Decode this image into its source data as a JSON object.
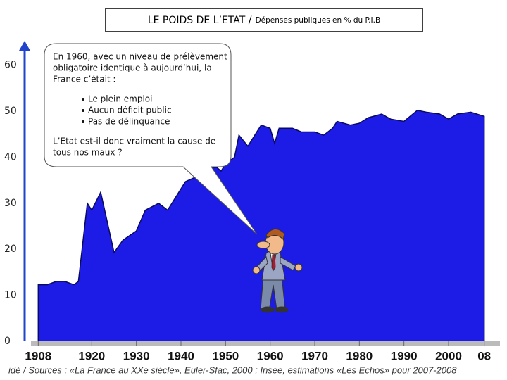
{
  "chart_data": {
    "type": "area",
    "title": "LE POIDS DE L’ETAT /",
    "subtitle": "Dépenses publiques en % du P.I.B",
    "source": "idé / Sources : «La France au XXe siècle», Euler-Sfac, 2000 : Insee, estimations «Les Echos» pour 2007-2008",
    "annotation": {
      "lines": [
        "En 1960, avec un niveau de prélèvement",
        "obligatoire identique à aujourd’hui, la",
        "France c’était :"
      ],
      "bullets": [
        "Le plein emploi",
        "Aucun déficit public",
        "Pas de délinquance"
      ],
      "question": [
        "L’Etat est-il donc vraiment la cause de",
        "tous nos maux ?"
      ]
    },
    "x": [
      1908,
      1910,
      1912,
      1914,
      1916,
      1917,
      1919,
      1920,
      1922,
      1925,
      1927,
      1930,
      1932,
      1935,
      1937,
      1939,
      1941,
      1944,
      1946,
      1948,
      1949,
      1950,
      1952,
      1953,
      1955,
      1957,
      1958,
      1960,
      1961,
      1962,
      1965,
      1967,
      1970,
      1972,
      1974,
      1975,
      1978,
      1980,
      1982,
      1985,
      1987,
      1990,
      1993,
      1995,
      1998,
      2000,
      2002,
      2005,
      2008
    ],
    "values": [
      12.3,
      12.3,
      13,
      13,
      12.3,
      13,
      30,
      28.5,
      32.4,
      19.3,
      22,
      24,
      28.5,
      30,
      28.5,
      31.6,
      34.7,
      36,
      37.8,
      37.8,
      37,
      38.6,
      40,
      44.8,
      42.4,
      45.5,
      47,
      46.3,
      43,
      46.3,
      46.3,
      45.5,
      45.5,
      44.8,
      46.3,
      47.8,
      47,
      47.4,
      48.6,
      49.4,
      48.3,
      47.8,
      50.2,
      49.8,
      49.4,
      48.3,
      49.4,
      49.8,
      48.9
    ],
    "color": "#1c1ce6",
    "xlim": [
      1907,
      2009
    ],
    "xticks": [
      1908,
      1920,
      1930,
      1940,
      1950,
      1960,
      1970,
      1980,
      1990,
      2000,
      {
        "value": 2008,
        "label": "08"
      }
    ],
    "ylim": [
      0,
      65
    ],
    "yticks": [
      0,
      10,
      20,
      30,
      40,
      50,
      60
    ],
    "grid": false
  }
}
